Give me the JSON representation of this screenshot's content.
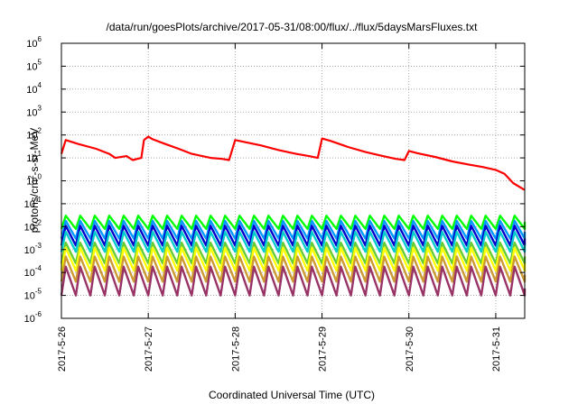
{
  "chart_data": {
    "type": "line",
    "title": "/data/run/goesPlots/archive/2017-05-31/08:00/flux/../flux/5daysMarsFluxes.txt",
    "xlabel": "Coordinated Universal Time (UTC)",
    "ylabel": "protons/cm^2-s-sr-MeV",
    "yscale": "log",
    "ylim": [
      1e-06,
      1000000.0
    ],
    "xlim": [
      "2017-05-26 00:00",
      "2017-05-31 08:00"
    ],
    "x_ticks": [
      "2017-5-26",
      "2017-5-27",
      "2017-5-28",
      "2017-5-29",
      "2017-5-30",
      "2017-5-31"
    ],
    "y_tick_exponents": [
      -6,
      -5,
      -4,
      -3,
      -2,
      -1,
      0,
      1,
      2,
      3,
      4,
      5,
      6
    ],
    "grid": true,
    "sawtooth_spikes_per_day": 6,
    "series": [
      {
        "color": "#ff0000",
        "x_day_offset": [
          0,
          0.05,
          0.2,
          0.4,
          0.55,
          0.62,
          0.75,
          0.82,
          0.92,
          0.95,
          1.0,
          1.05,
          1.2,
          1.35,
          1.5,
          1.62,
          1.72,
          1.85,
          1.93,
          2.0,
          2.1,
          2.3,
          2.5,
          2.7,
          2.85,
          2.95,
          3.0,
          3.1,
          3.3,
          3.5,
          3.7,
          3.85,
          3.95,
          4.0,
          4.1,
          4.3,
          4.5,
          4.7,
          4.85,
          5.0,
          5.1,
          5.2,
          5.33
        ],
        "values": [
          15,
          60,
          40,
          25,
          15,
          10,
          12,
          8,
          10,
          60,
          85,
          65,
          40,
          25,
          15,
          12,
          10,
          9,
          8,
          60,
          50,
          35,
          22,
          15,
          12,
          10,
          70,
          55,
          30,
          18,
          12,
          9,
          8,
          20,
          16,
          11,
          7,
          5,
          4,
          3,
          2,
          0.8,
          0.4
        ]
      },
      {
        "color": "#00ff00",
        "low": 0.008,
        "high": 0.03
      },
      {
        "color": "#0099ff",
        "low": 0.003,
        "high": 0.018
      },
      {
        "color": "#0000cc",
        "low": 0.0015,
        "high": 0.011
      },
      {
        "color": "#00cccc",
        "low": 0.0008,
        "high": 0.006
      },
      {
        "color": "#66cc33",
        "low": 0.00025,
        "high": 0.002
      },
      {
        "color": "#ffff00",
        "low": 0.00012,
        "high": 0.0012
      },
      {
        "color": "#cc9933",
        "low": 4e-05,
        "high": 0.0005
      },
      {
        "color": "#993366",
        "low": 1e-05,
        "high": 0.00018
      }
    ]
  }
}
